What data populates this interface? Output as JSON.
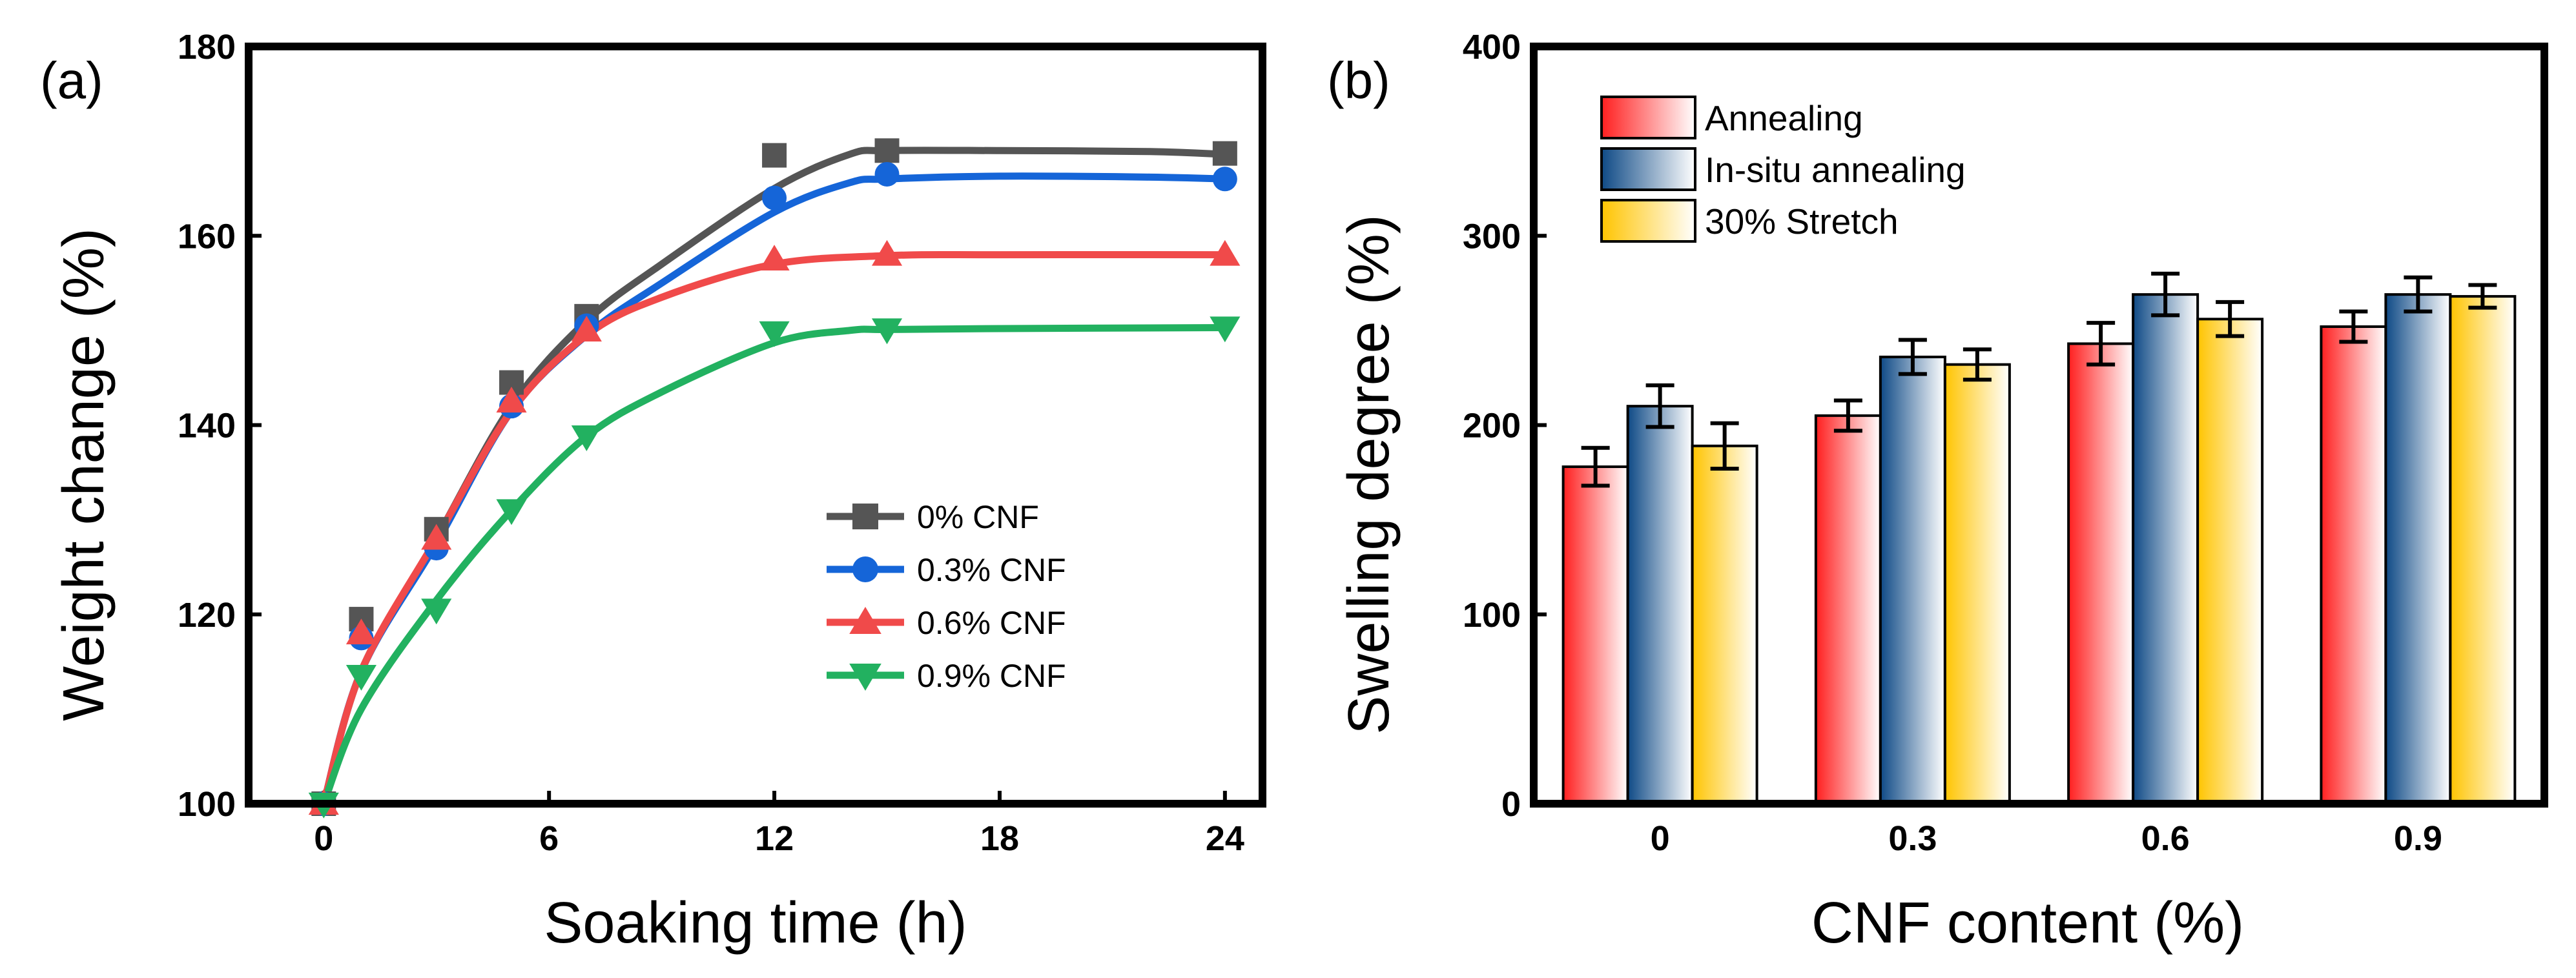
{
  "chart_data": [
    {
      "type": "line",
      "panel_label": "(a)",
      "title": "",
      "xlabel": "Soaking time (h)",
      "ylabel": "Weight change (%)",
      "xlim": [
        -2,
        25
      ],
      "ylim": [
        100,
        180
      ],
      "x_ticks": [
        0,
        6,
        12,
        18,
        24
      ],
      "y_ticks": [
        100,
        120,
        140,
        160,
        180
      ],
      "legend_position": "center-right",
      "series": [
        {
          "name": "0% CNF",
          "color": "#555555",
          "marker": "square",
          "x": [
            0,
            1,
            3,
            5,
            7,
            12,
            15,
            24
          ],
          "y": [
            100,
            119.5,
            129,
            144.5,
            151.5,
            168.5,
            169,
            168.7
          ],
          "curve": [
            [
              0,
              100
            ],
            [
              1,
              114
            ],
            [
              3,
              128
            ],
            [
              5,
              142
            ],
            [
              7,
              151
            ],
            [
              9,
              157
            ],
            [
              12,
              165
            ],
            [
              14,
              168.6
            ],
            [
              15,
              169
            ],
            [
              18,
              169
            ],
            [
              22,
              168.9
            ],
            [
              24,
              168.6
            ]
          ]
        },
        {
          "name": "0.3% CNF",
          "color": "#1565d8",
          "marker": "circle",
          "x": [
            0,
            1,
            3,
            5,
            7,
            12,
            15,
            24
          ],
          "y": [
            100,
            117.5,
            127,
            142,
            150.5,
            164,
            166.5,
            166
          ],
          "curve": [
            [
              0,
              100
            ],
            [
              1,
              114
            ],
            [
              3,
              127.5
            ],
            [
              5,
              141.5
            ],
            [
              7,
              149.5
            ],
            [
              9,
              155
            ],
            [
              12,
              162.5
            ],
            [
              14,
              165.6
            ],
            [
              15,
              166
            ],
            [
              18,
              166.3
            ],
            [
              22,
              166.2
            ],
            [
              24,
              166
            ]
          ]
        },
        {
          "name": "0.6% CNF",
          "color": "#f04a4a",
          "marker": "triangle-up",
          "x": [
            0,
            1,
            3,
            5,
            7,
            12,
            15,
            24
          ],
          "y": [
            100,
            118,
            128,
            142.5,
            150,
            157.5,
            158,
            158
          ],
          "curve": [
            [
              0,
              100
            ],
            [
              1,
              114
            ],
            [
              3,
              128
            ],
            [
              5,
              141.5
            ],
            [
              7,
              149.5
            ],
            [
              9,
              153.5
            ],
            [
              12,
              157
            ],
            [
              15,
              157.9
            ],
            [
              18,
              158
            ],
            [
              24,
              158
            ]
          ]
        },
        {
          "name": "0.9% CNF",
          "color": "#22b160",
          "marker": "triangle-down",
          "x": [
            0,
            1,
            3,
            5,
            7,
            12,
            15,
            24
          ],
          "y": [
            100,
            113.5,
            120.5,
            131,
            138.8,
            149.8,
            150.1,
            150.3
          ],
          "curve": [
            [
              0,
              100
            ],
            [
              1,
              110
            ],
            [
              3,
              121.5
            ],
            [
              5,
              131
            ],
            [
              7,
              138.8
            ],
            [
              9,
              143.5
            ],
            [
              12,
              148.7
            ],
            [
              14,
              150
            ],
            [
              15,
              150.1
            ],
            [
              18,
              150.2
            ],
            [
              24,
              150.3
            ]
          ]
        }
      ]
    },
    {
      "type": "bar",
      "panel_label": "(b)",
      "title": "",
      "xlabel": "CNF content (%)",
      "ylabel": "Swelling degree (%)",
      "ylim": [
        0,
        400
      ],
      "y_ticks": [
        0,
        100,
        200,
        300,
        400
      ],
      "categories": [
        "0",
        "0.3",
        "0.6",
        "0.9"
      ],
      "legend_position": "top-left",
      "series": [
        {
          "name": "Annealing",
          "gradient": [
            "#ff1f1f",
            "#ffffff"
          ],
          "values": [
            178,
            205,
            243,
            252
          ],
          "errors": [
            10,
            8,
            11,
            8
          ]
        },
        {
          "name": "In-situ annealing",
          "gradient": [
            "#0f4a86",
            "#ffffff"
          ],
          "values": [
            210,
            236,
            269,
            269
          ],
          "errors": [
            11,
            9,
            11,
            9
          ]
        },
        {
          "name": "30% Stretch",
          "gradient": [
            "#ffc400",
            "#ffffff"
          ],
          "values": [
            189,
            232,
            256,
            268
          ],
          "errors": [
            12,
            8,
            9,
            6
          ]
        }
      ]
    }
  ]
}
